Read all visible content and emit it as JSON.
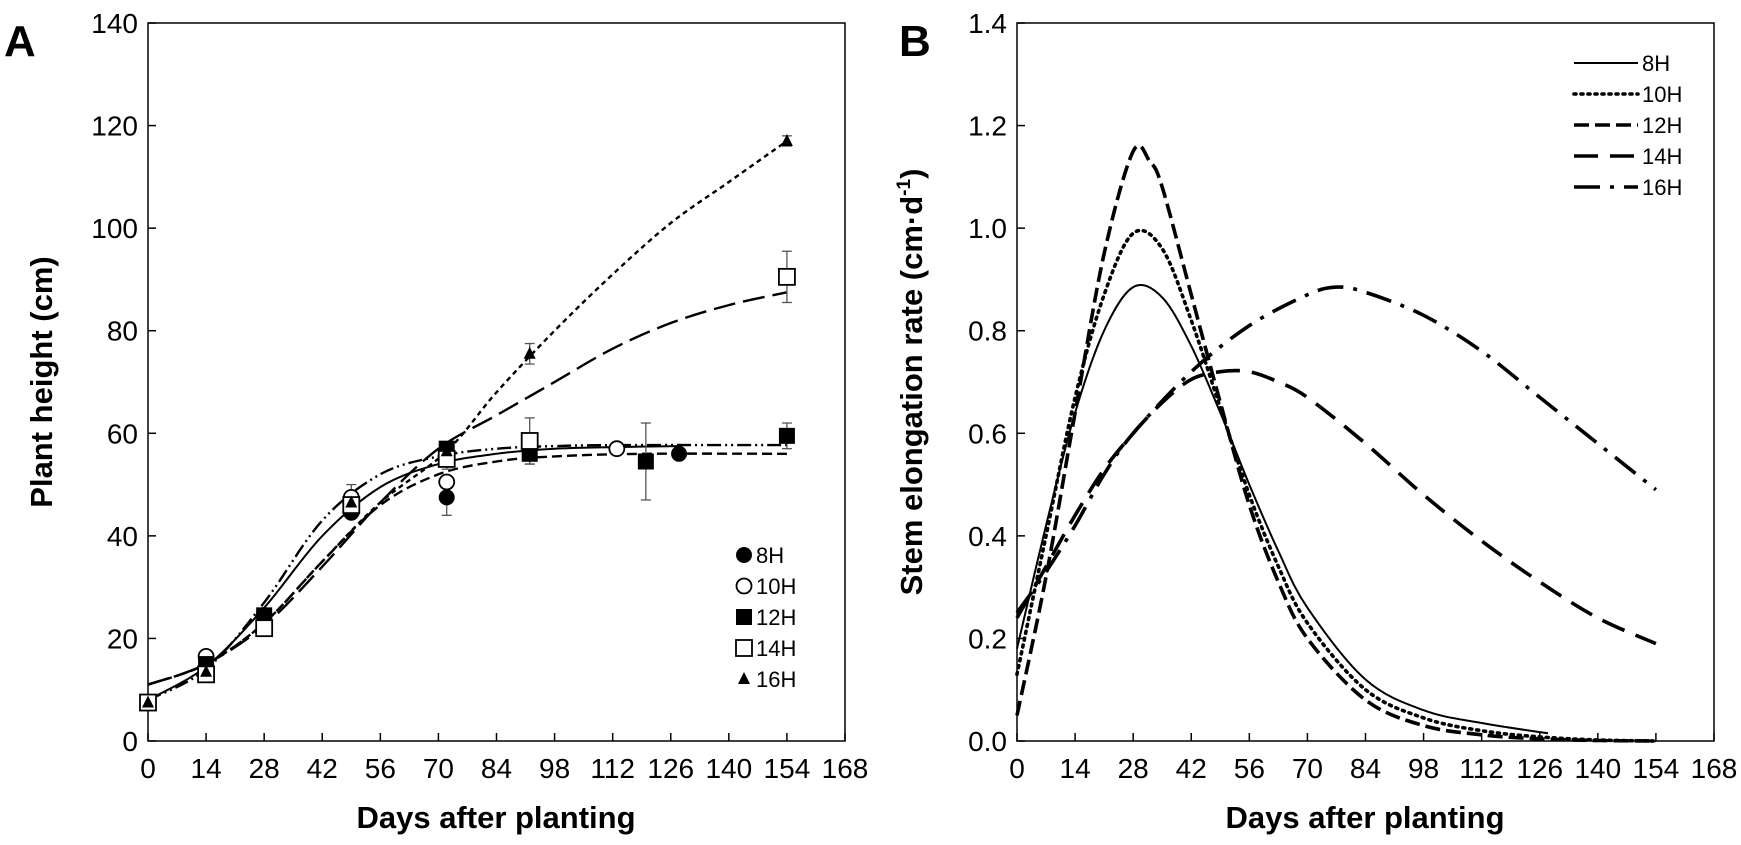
{
  "chart_data": [
    {
      "panel": "A",
      "type": "scatter",
      "xlabel": "Days after planting",
      "ylabel": "Plant height (cm)",
      "xlim": [
        0,
        168
      ],
      "ylim": [
        0,
        140
      ],
      "x_ticks": [
        0,
        14,
        28,
        42,
        56,
        70,
        84,
        98,
        112,
        126,
        140,
        154,
        168
      ],
      "y_ticks": [
        0,
        20,
        40,
        60,
        80,
        100,
        120,
        140
      ],
      "legend_position": "bottom-right",
      "series": [
        {
          "name": "8H",
          "marker": "filled-circle",
          "points": [
            [
              0,
              7.5
            ],
            [
              14,
              16
            ],
            [
              28,
              24
            ],
            [
              49,
              44.5
            ],
            [
              72,
              47.5
            ],
            [
              128,
              56
            ]
          ],
          "errors": [
            0,
            0.5,
            0.5,
            1,
            3.5,
            0.5
          ],
          "fit_line": "solid",
          "fit": [
            [
              0,
              8
            ],
            [
              14,
              14.5
            ],
            [
              28,
              26
            ],
            [
              42,
              40
            ],
            [
              56,
              49.5
            ],
            [
              70,
              54
            ],
            [
              84,
              56
            ],
            [
              98,
              57
            ],
            [
              112,
              57.3
            ],
            [
              128,
              57.5
            ]
          ]
        },
        {
          "name": "10H",
          "marker": "open-circle",
          "points": [
            [
              0,
              7.5
            ],
            [
              14,
              16.5
            ],
            [
              28,
              24.5
            ],
            [
              49,
              47.5
            ],
            [
              72,
              50.5
            ],
            [
              113,
              57
            ]
          ],
          "errors": [
            0,
            0.5,
            0.5,
            2.5,
            1,
            0.5
          ],
          "fit_line": "dash-dot-dot",
          "fit": [
            [
              0,
              8
            ],
            [
              14,
              14
            ],
            [
              28,
              27
            ],
            [
              42,
              43
            ],
            [
              56,
              52
            ],
            [
              70,
              55.5
            ],
            [
              84,
              57
            ],
            [
              98,
              57.5
            ],
            [
              113,
              57.7
            ],
            [
              154,
              57.7
            ]
          ]
        },
        {
          "name": "12H",
          "marker": "filled-square",
          "points": [
            [
              0,
              7.5
            ],
            [
              14,
              15
            ],
            [
              28,
              24.5
            ],
            [
              49,
              45.5
            ],
            [
              72,
              57
            ],
            [
              92,
              56
            ],
            [
              120,
              54.5
            ],
            [
              154,
              59.5
            ]
          ],
          "errors": [
            0,
            0.5,
            0.5,
            1,
            1,
            2,
            7.5,
            2.5
          ],
          "fit_line": "dashed",
          "fit": [
            [
              0,
              11
            ],
            [
              14,
              15
            ],
            [
              28,
              23
            ],
            [
              42,
              35
            ],
            [
              56,
              46
            ],
            [
              70,
              52
            ],
            [
              84,
              54.5
            ],
            [
              98,
              55.5
            ],
            [
              120,
              56
            ],
            [
              154,
              56
            ]
          ]
        },
        {
          "name": "14H",
          "marker": "open-square",
          "points": [
            [
              0,
              7.5
            ],
            [
              14,
              13
            ],
            [
              28,
              22
            ],
            [
              49,
              46
            ],
            [
              72,
              55
            ],
            [
              92,
              58.5
            ],
            [
              154,
              90.5
            ]
          ],
          "errors": [
            0,
            0.5,
            0.5,
            2,
            2,
            4.5,
            5
          ],
          "fit_line": "long-dashed",
          "fit": [
            [
              0,
              11
            ],
            [
              14,
              15
            ],
            [
              28,
              22.5
            ],
            [
              42,
              34
            ],
            [
              56,
              46.5
            ],
            [
              70,
              57
            ],
            [
              84,
              63.5
            ],
            [
              98,
              70
            ],
            [
              112,
              76.5
            ],
            [
              126,
              81.5
            ],
            [
              140,
              85
            ],
            [
              154,
              87.5
            ]
          ]
        },
        {
          "name": "16H",
          "marker": "filled-triangle",
          "points": [
            [
              0,
              7.5
            ],
            [
              14,
              13.5
            ],
            [
              28,
              24.5
            ],
            [
              49,
              46.5
            ],
            [
              72,
              56.5
            ],
            [
              92,
              75.5
            ],
            [
              154,
              117
            ]
          ],
          "errors": [
            0,
            0.5,
            0.5,
            1,
            1,
            2,
            1
          ],
          "fit_line": "short-dashed",
          "fit": [
            [
              0,
              11
            ],
            [
              14,
              15
            ],
            [
              28,
              23
            ],
            [
              42,
              35
            ],
            [
              56,
              46.5
            ],
            [
              72,
              56.5
            ],
            [
              84,
              68
            ],
            [
              98,
              80
            ],
            [
              112,
              91
            ],
            [
              126,
              101
            ],
            [
              140,
              109
            ],
            [
              154,
              117
            ]
          ]
        }
      ]
    },
    {
      "panel": "B",
      "type": "line",
      "xlabel": "Days after planting",
      "ylabel_main": "Stem elongation rate (cm·d",
      "ylabel_sup": "-1",
      "ylabel_end": ")",
      "xlim": [
        0,
        168
      ],
      "ylim": [
        0,
        1.4
      ],
      "x_ticks": [
        0,
        14,
        28,
        42,
        56,
        70,
        84,
        98,
        112,
        126,
        140,
        154,
        168
      ],
      "y_ticks": [
        "0.0",
        "0.2",
        "0.4",
        "0.6",
        "0.8",
        "1.0",
        "1.2",
        "1.4"
      ],
      "legend_position": "top-right",
      "series": [
        {
          "name": "8H",
          "line": "solid",
          "points": [
            [
              0,
              0.18
            ],
            [
              7,
              0.42
            ],
            [
              14,
              0.64
            ],
            [
              21,
              0.8
            ],
            [
              28,
              0.885
            ],
            [
              35,
              0.865
            ],
            [
              42,
              0.77
            ],
            [
              49,
              0.64
            ],
            [
              56,
              0.5
            ],
            [
              63,
              0.37
            ],
            [
              70,
              0.26
            ],
            [
              84,
              0.12
            ],
            [
              98,
              0.06
            ],
            [
              112,
              0.035
            ],
            [
              128,
              0.015
            ]
          ]
        },
        {
          "name": "10H",
          "line": "dotted",
          "points": [
            [
              0,
              0.13
            ],
            [
              7,
              0.4
            ],
            [
              14,
              0.67
            ],
            [
              21,
              0.87
            ],
            [
              28,
              0.99
            ],
            [
              35,
              0.96
            ],
            [
              42,
              0.82
            ],
            [
              49,
              0.65
            ],
            [
              56,
              0.48
            ],
            [
              63,
              0.34
            ],
            [
              70,
              0.23
            ],
            [
              84,
              0.1
            ],
            [
              98,
              0.045
            ],
            [
              112,
              0.02
            ],
            [
              126,
              0.008
            ],
            [
              140,
              0.002
            ],
            [
              154,
              0.0
            ]
          ]
        },
        {
          "name": "12H",
          "line": "dashed",
          "points": [
            [
              0,
              0.05
            ],
            [
              7,
              0.32
            ],
            [
              14,
              0.64
            ],
            [
              21,
              0.95
            ],
            [
              28,
              1.15
            ],
            [
              32,
              1.13
            ],
            [
              35,
              1.08
            ],
            [
              42,
              0.87
            ],
            [
              49,
              0.66
            ],
            [
              56,
              0.46
            ],
            [
              63,
              0.31
            ],
            [
              70,
              0.2
            ],
            [
              84,
              0.08
            ],
            [
              98,
              0.03
            ],
            [
              112,
              0.012
            ],
            [
              126,
              0.004
            ],
            [
              140,
              0.001
            ],
            [
              154,
              0.0
            ]
          ]
        },
        {
          "name": "14H",
          "line": "long-dashed",
          "points": [
            [
              0,
              0.24
            ],
            [
              7,
              0.34
            ],
            [
              14,
              0.44
            ],
            [
              21,
              0.53
            ],
            [
              28,
              0.6
            ],
            [
              35,
              0.66
            ],
            [
              42,
              0.705
            ],
            [
              49,
              0.72
            ],
            [
              56,
              0.72
            ],
            [
              63,
              0.7
            ],
            [
              70,
              0.67
            ],
            [
              84,
              0.58
            ],
            [
              98,
              0.48
            ],
            [
              112,
              0.39
            ],
            [
              126,
              0.31
            ],
            [
              140,
              0.24
            ],
            [
              154,
              0.19
            ]
          ]
        },
        {
          "name": "16H",
          "line": "dash-dot",
          "points": [
            [
              0,
              0.25
            ],
            [
              7,
              0.33
            ],
            [
              14,
              0.42
            ],
            [
              21,
              0.52
            ],
            [
              28,
              0.6
            ],
            [
              42,
              0.72
            ],
            [
              56,
              0.81
            ],
            [
              70,
              0.87
            ],
            [
              77,
              0.885
            ],
            [
              84,
              0.875
            ],
            [
              98,
              0.83
            ],
            [
              112,
              0.76
            ],
            [
              126,
              0.67
            ],
            [
              140,
              0.58
            ],
            [
              154,
              0.49
            ]
          ]
        }
      ]
    }
  ]
}
